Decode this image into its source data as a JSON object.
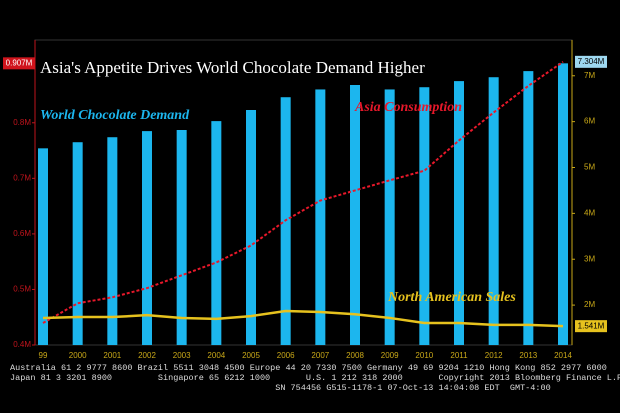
{
  "chart_data": {
    "type": "bar_line",
    "title": "Asia's Appetite Drives World Chocolate Demand Higher",
    "categories": [
      "99",
      "2000",
      "2001",
      "2002",
      "2003",
      "2004",
      "2005",
      "2006",
      "2007",
      "2008",
      "2009",
      "2010",
      "2011",
      "2012",
      "2013",
      "2014"
    ],
    "series": [
      {
        "name": "World Chocolate Demand",
        "type": "bar",
        "axis": "y",
        "color": "#1cb6ee",
        "values": [
          0.754,
          0.765,
          0.774,
          0.785,
          0.787,
          0.803,
          0.823,
          0.846,
          0.86,
          0.868,
          0.86,
          0.864,
          0.875,
          0.882,
          0.893,
          0.907
        ],
        "value_labels": [
          null,
          null,
          null,
          null,
          null,
          null,
          null,
          null,
          null,
          null,
          null,
          null,
          null,
          null,
          null,
          "0.907M"
        ]
      },
      {
        "name": "Asia Consumption",
        "type": "line",
        "dashed": true,
        "axis": "y2",
        "color": "#e8182a",
        "values": [
          1.61,
          2.04,
          2.17,
          2.37,
          2.65,
          2.93,
          3.3,
          3.85,
          4.28,
          4.5,
          4.72,
          4.93,
          5.59,
          6.2,
          6.78,
          7.304
        ],
        "value_labels": [
          null,
          null,
          null,
          null,
          null,
          null,
          null,
          null,
          null,
          null,
          null,
          null,
          null,
          null,
          null,
          "7.304M"
        ]
      },
      {
        "name": "North American Sales",
        "type": "line",
        "axis": "y2",
        "color": "#e6c21e",
        "values": [
          1.72,
          1.74,
          1.74,
          1.78,
          1.72,
          1.7,
          1.76,
          1.87,
          1.85,
          1.8,
          1.72,
          1.61,
          1.61,
          1.57,
          1.57,
          1.541
        ],
        "value_labels": [
          null,
          null,
          null,
          null,
          null,
          null,
          null,
          null,
          null,
          null,
          null,
          null,
          null,
          null,
          null,
          "1.541M"
        ]
      }
    ],
    "ylim": [
      0.4,
      0.949
    ],
    "yticks": [
      {
        "value": 0.4,
        "label": "0.4M"
      },
      {
        "value": 0.5,
        "label": "0.5M"
      },
      {
        "value": 0.6,
        "label": "0.6M"
      },
      {
        "value": 0.7,
        "label": "0.7M"
      },
      {
        "value": 0.8,
        "label": "0.8M"
      }
    ],
    "y2lim": [
      1.13,
      7.78
    ],
    "y2ticks": [
      {
        "value": 2,
        "label": "2M"
      },
      {
        "value": 3,
        "label": "3M"
      },
      {
        "value": 4,
        "label": "4M"
      },
      {
        "value": 5,
        "label": "5M"
      },
      {
        "value": 6,
        "label": "6M"
      },
      {
        "value": 7,
        "label": "7M"
      }
    ],
    "footer": [
      "Australia 61 2 9777 8600 Brazil 5511 3048 4500 Europe 44 20 7330 7500 Germany 49 69 9204 1210 Hong Kong 852 2977 6000",
      "Japan 81 3 3201 8900         Singapore 65 6212 1000       U.S. 1 212 318 2000       Copyright 2013 Bloomberg Finance L.P.",
      "                                                    SN 754456 G515-1178-1 07-Oct-13 14:04:08 EDT  GMT-4:00"
    ]
  }
}
